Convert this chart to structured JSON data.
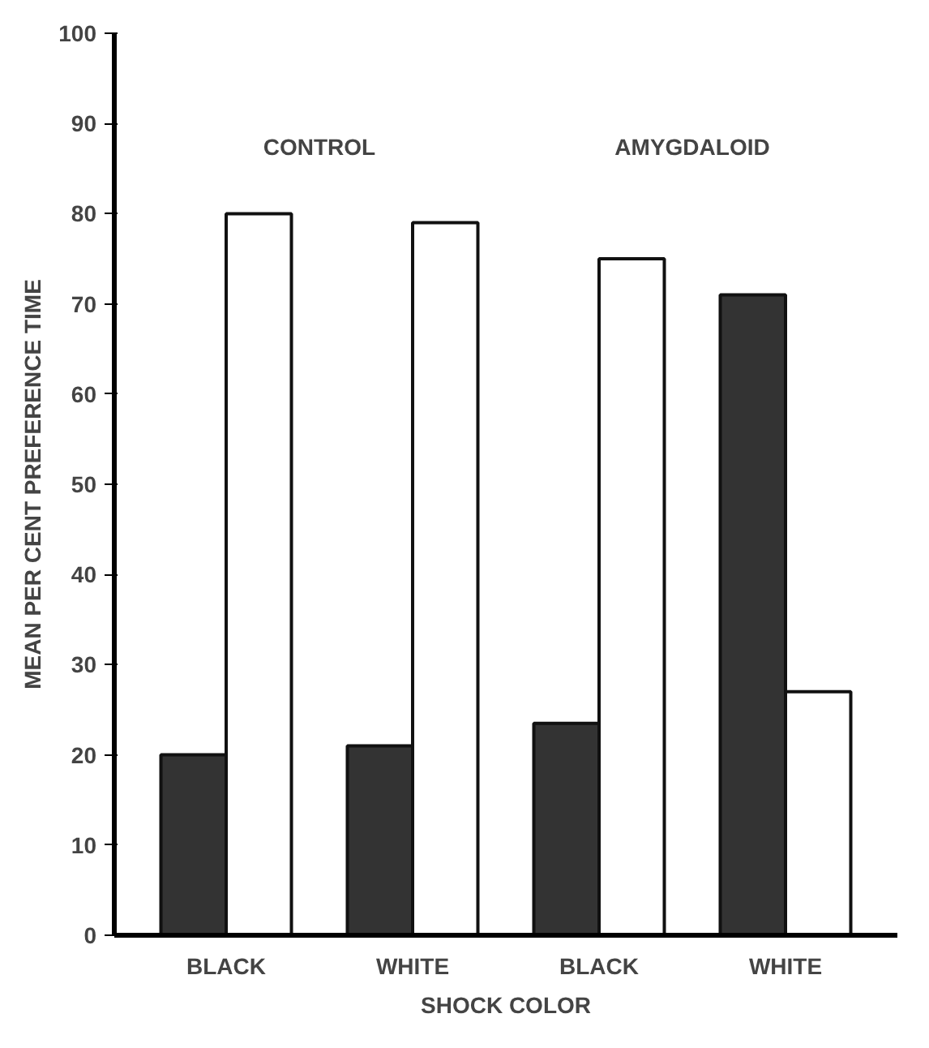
{
  "chart_data": {
    "type": "bar",
    "xlabel": "SHOCK COLOR",
    "ylabel": "MEAN PER CENT PREFERENCE TIME",
    "categories": [
      "BLACK",
      "WHITE",
      "BLACK",
      "WHITE"
    ],
    "series": [
      {
        "color": "#333333",
        "values": [
          20,
          21,
          23.5,
          71
        ]
      },
      {
        "color": "#ffffff",
        "values": [
          80,
          79,
          75,
          27
        ]
      }
    ],
    "annotations": [
      "CONTROL",
      "AMYGDALOID"
    ],
    "ylim": [
      0,
      100
    ],
    "yticks": [
      0,
      10,
      20,
      30,
      40,
      50,
      60,
      70,
      80,
      90,
      100
    ],
    "grid": false
  }
}
